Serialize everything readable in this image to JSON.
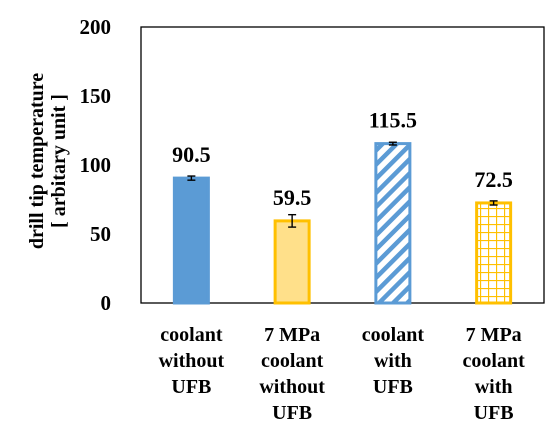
{
  "chart_data": {
    "type": "bar",
    "categories": [
      [
        "coolant",
        "without",
        "UFB"
      ],
      [
        "7 MPa",
        "coolant",
        "without",
        "UFB"
      ],
      [
        "coolant",
        "with",
        "UFB"
      ],
      [
        "7 MPa",
        "coolant",
        "with",
        "UFB"
      ]
    ],
    "values": [
      90.5,
      59.5,
      115.5,
      72.5
    ],
    "value_labels": [
      "90.5",
      "59.5",
      "115.5",
      "72.5"
    ],
    "error": [
      1.5,
      4.5,
      1.0,
      1.5
    ],
    "ylabel": [
      "drill tip temperature",
      "[ arbitary unit ]"
    ],
    "ylim": [
      0,
      200
    ],
    "yticks": [
      "0",
      "50",
      "100",
      "150",
      "200"
    ],
    "grid": false,
    "bar_styles": [
      {
        "fill": "solid",
        "color": "#5b9bd5",
        "edge": "#5b9bd5"
      },
      {
        "fill": "solid",
        "color": "#ffe08a",
        "edge": "#ffc000"
      },
      {
        "fill": "diagonal-hatch",
        "color": "#5b9bd5",
        "edge": "#5b9bd5"
      },
      {
        "fill": "grid-hatch",
        "color": "#ffc000",
        "edge": "#ffc000"
      }
    ]
  }
}
